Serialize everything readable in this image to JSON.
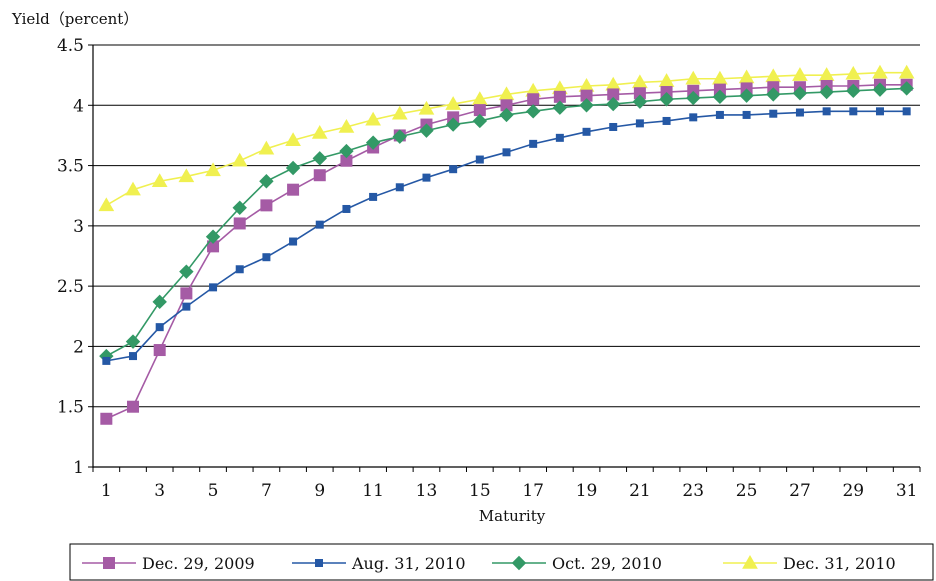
{
  "chart_data": {
    "type": "line",
    "ylabel": "Yield（percent）",
    "xlabel": "Maturity",
    "ylim": [
      1,
      4.5
    ],
    "yticks": [
      "1",
      "1.5",
      "2",
      "2.5",
      "3",
      "3.5",
      "4",
      "4.5"
    ],
    "xlim": [
      1,
      31
    ],
    "xticks": [
      "1",
      "3",
      "5",
      "7",
      "9",
      "11",
      "13",
      "15",
      "17",
      "19",
      "21",
      "23",
      "25",
      "27",
      "29",
      "31"
    ],
    "grid": true,
    "legend_position": "bottom",
    "x": [
      1,
      2,
      3,
      4,
      5,
      6,
      7,
      8,
      9,
      10,
      11,
      12,
      13,
      14,
      15,
      16,
      17,
      18,
      19,
      20,
      21,
      22,
      23,
      24,
      25,
      26,
      27,
      28,
      29,
      30,
      31
    ],
    "series": [
      {
        "name": "Dec. 29, 2009",
        "color": "#a55ba5",
        "marker": "square",
        "values": [
          1.4,
          1.5,
          1.97,
          2.44,
          2.83,
          3.02,
          3.17,
          3.3,
          3.42,
          3.54,
          3.65,
          3.75,
          3.84,
          3.9,
          3.96,
          4.0,
          4.05,
          4.07,
          4.08,
          4.09,
          4.1,
          4.11,
          4.12,
          4.13,
          4.14,
          4.15,
          4.15,
          4.16,
          4.16,
          4.17,
          4.17
        ]
      },
      {
        "name": "Aug. 31, 2010",
        "color": "#2558a5",
        "marker": "small-square",
        "values": [
          1.88,
          1.92,
          2.16,
          2.33,
          2.49,
          2.64,
          2.74,
          2.87,
          3.01,
          3.14,
          3.24,
          3.32,
          3.4,
          3.47,
          3.55,
          3.61,
          3.68,
          3.73,
          3.78,
          3.82,
          3.85,
          3.87,
          3.9,
          3.92,
          3.92,
          3.93,
          3.94,
          3.95,
          3.95,
          3.95,
          3.95
        ]
      },
      {
        "name": "Oct. 29, 2010",
        "color": "#339966",
        "marker": "diamond",
        "values": [
          1.92,
          2.04,
          2.37,
          2.62,
          2.91,
          3.15,
          3.37,
          3.48,
          3.56,
          3.62,
          3.69,
          3.74,
          3.79,
          3.84,
          3.87,
          3.92,
          3.95,
          3.98,
          4.0,
          4.01,
          4.03,
          4.05,
          4.06,
          4.07,
          4.08,
          4.09,
          4.1,
          4.11,
          4.12,
          4.13,
          4.14
        ]
      },
      {
        "name": "Dec. 31, 2010",
        "color": "#f0f050",
        "marker": "triangle",
        "values": [
          3.17,
          3.3,
          3.37,
          3.41,
          3.46,
          3.54,
          3.64,
          3.71,
          3.77,
          3.82,
          3.88,
          3.93,
          3.97,
          4.01,
          4.05,
          4.09,
          4.12,
          4.14,
          4.16,
          4.17,
          4.19,
          4.2,
          4.22,
          4.22,
          4.23,
          4.24,
          4.25,
          4.25,
          4.26,
          4.27,
          4.27
        ]
      }
    ]
  }
}
